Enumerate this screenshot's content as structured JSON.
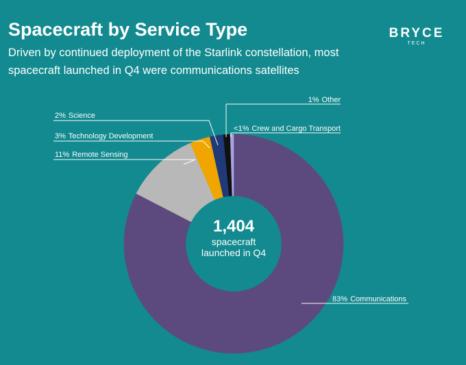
{
  "chart_data": {
    "type": "donut",
    "title": "Spacecraft by Service Type",
    "subtitle": [
      "Driven by continued deployment of the Starlink constellation, most",
      "spacecraft launched in Q4 were communications satellites"
    ],
    "brand": {
      "name": "BRYCE",
      "tagline": "TECH"
    },
    "categories": [
      "Communications",
      "Remote Sensing",
      "Technology Development",
      "Science",
      "Other",
      "Crew and Cargo Transport"
    ],
    "values": [
      83,
      11,
      3,
      2,
      1,
      0.5
    ],
    "value_labels": [
      "83%",
      "11%",
      "3%",
      "2%",
      "1%",
      "<1%"
    ],
    "colors": [
      "#5c4a7e",
      "#b8b8b8",
      "#f0a500",
      "#1f3a78",
      "#111111",
      "#a8a3e3"
    ],
    "center_text": [
      "1,404",
      "spacecraft",
      "launched in Q4"
    ]
  }
}
